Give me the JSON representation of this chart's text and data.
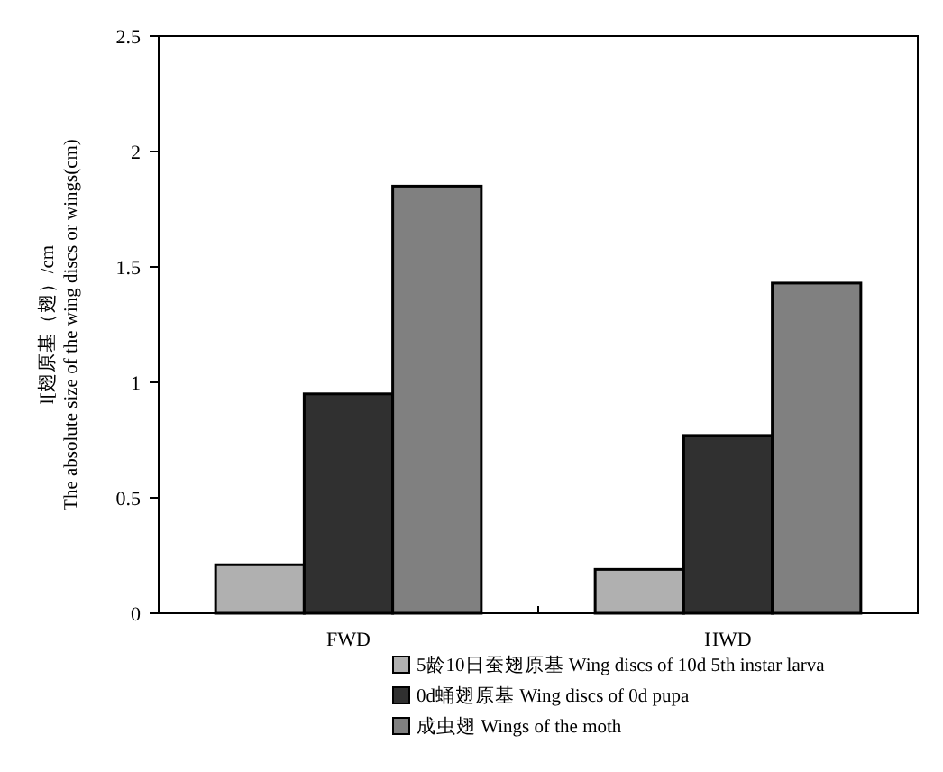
{
  "chart_data": {
    "type": "bar",
    "ylabel": "l[翅原基（翅）/cm\nThe absolute size of the wing discs or wings(cm)",
    "categories": [
      "FWD",
      "HWD"
    ],
    "series": [
      {
        "name": "5龄10日蚕翅原基 Wing discs of 10d 5th instar larva",
        "color": "#b0b0b0",
        "values": [
          0.21,
          0.19
        ]
      },
      {
        "name": "0d蛹翅原基 Wing discs of 0d pupa",
        "color": "#303030",
        "values": [
          0.95,
          0.77
        ]
      },
      {
        "name": "成虫翅 Wings of the moth",
        "color": "#808080",
        "values": [
          1.85,
          1.43
        ]
      }
    ],
    "ylim": [
      0,
      2.5
    ],
    "yticks": [
      0,
      0.5,
      1,
      1.5,
      2,
      2.5
    ],
    "legend": "bottom",
    "grid": false
  }
}
